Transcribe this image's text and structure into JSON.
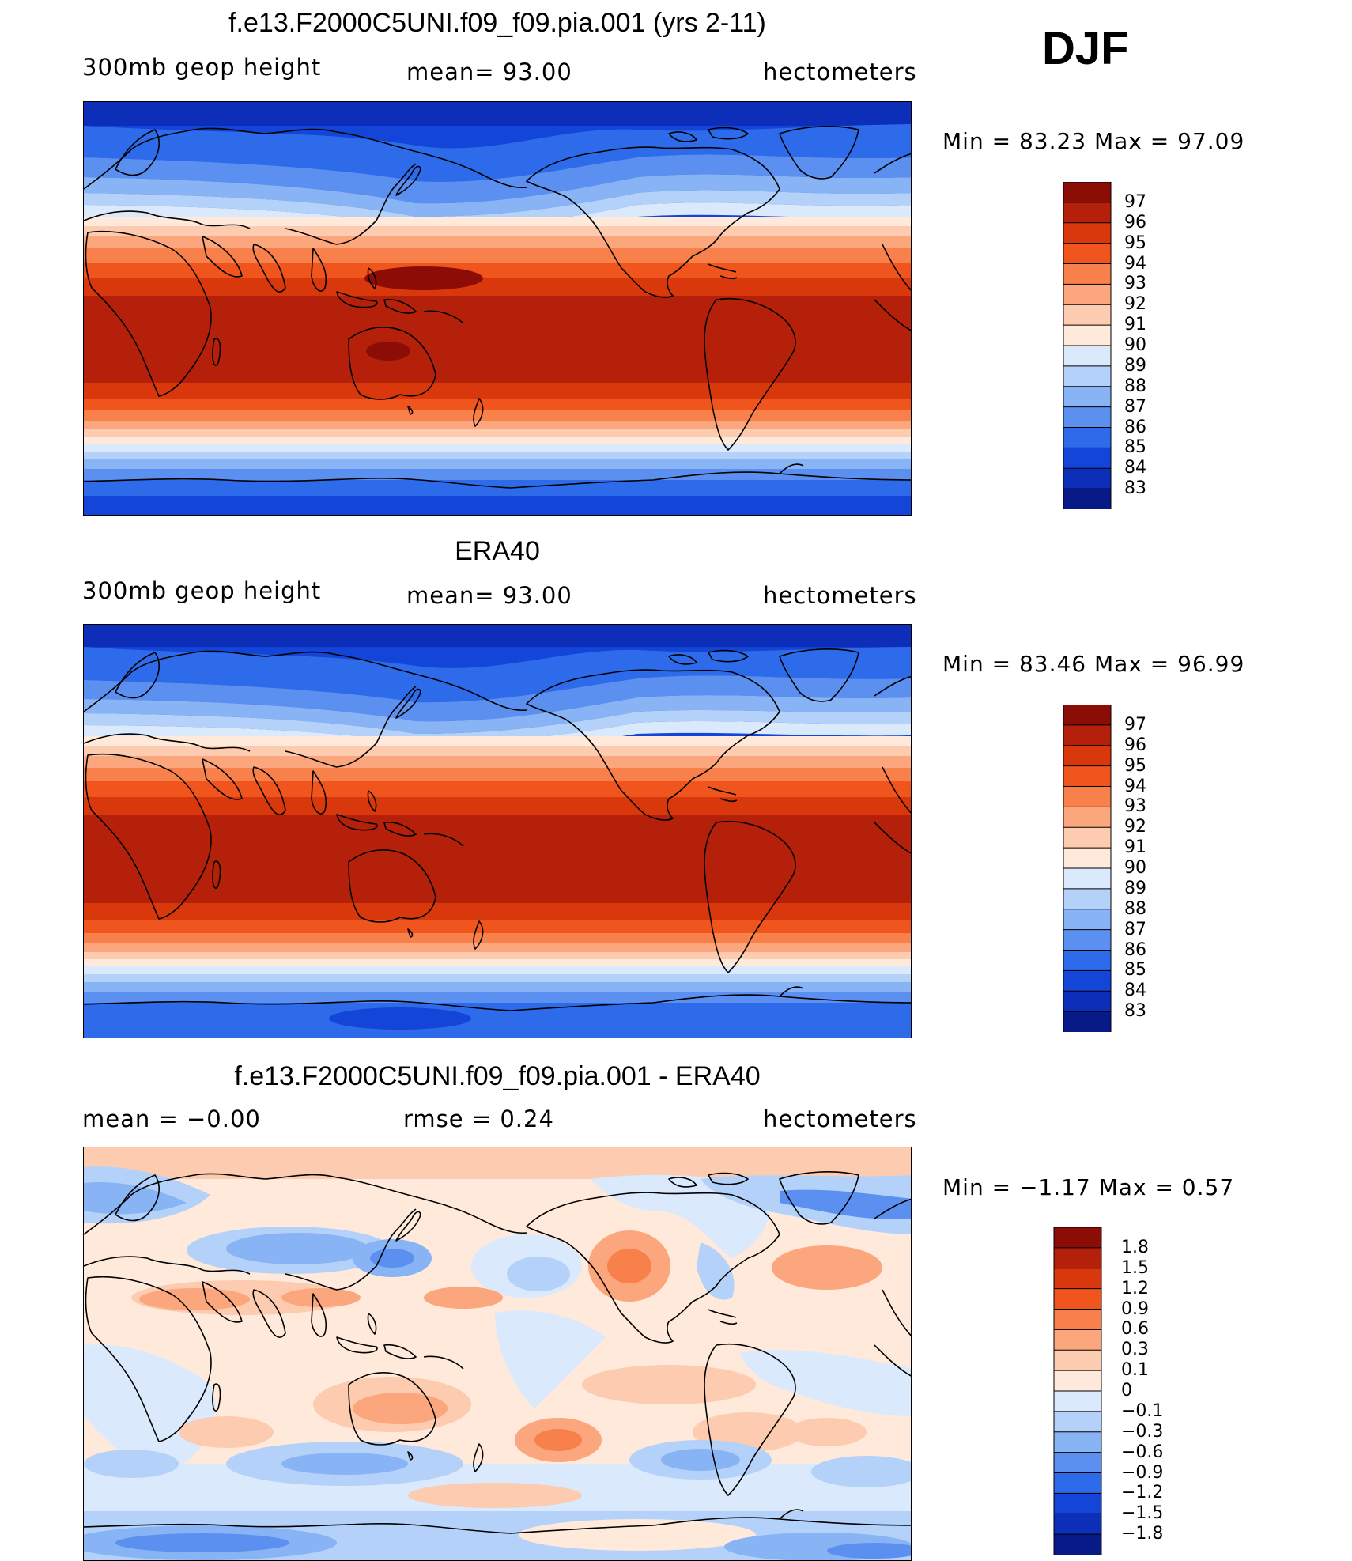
{
  "season": "DJF",
  "panels": [
    {
      "id": "model",
      "title": "f.e13.F2000C5UNI.f09_f09.pia.001 (yrs 2-11)",
      "left_label": "300mb geop height",
      "center_label": "mean=  93.00",
      "right_label": "hectometers",
      "minmax": "Min =  83.23 Max =  97.09",
      "colorbar": {
        "labels": [
          "97",
          "96",
          "95",
          "94",
          "93",
          "92",
          "91",
          "90",
          "89",
          "88",
          "87",
          "86",
          "85",
          "84",
          "83"
        ],
        "colors": [
          "#8b0d06",
          "#b5200a",
          "#d9380c",
          "#f0551e",
          "#f8804a",
          "#fba67d",
          "#fdcbb0",
          "#fee9db",
          "#dae9fb",
          "#b4d2f9",
          "#88b3f4",
          "#5b8ff0",
          "#2e6bea",
          "#1245d8",
          "#0c2eb8",
          "#081a88"
        ]
      },
      "field": {
        "type": "geopotential_height",
        "units": "hectometers",
        "range": [
          83.23,
          97.09
        ],
        "features": [
          "tropical maximum 96-97 over western Pacific and northern Australia",
          "polar minima 83-84"
        ]
      }
    },
    {
      "id": "obs",
      "title": "ERA40",
      "left_label": "300mb geop height",
      "center_label": "mean=  93.00",
      "right_label": "hectometers",
      "minmax": "Min =  83.46 Max =  96.99",
      "colorbar": {
        "labels": [
          "97",
          "96",
          "95",
          "94",
          "93",
          "92",
          "91",
          "90",
          "89",
          "88",
          "87",
          "86",
          "85",
          "84",
          "83"
        ],
        "colors": [
          "#8b0d06",
          "#b5200a",
          "#d9380c",
          "#f0551e",
          "#f8804a",
          "#fba67d",
          "#fdcbb0",
          "#fee9db",
          "#dae9fb",
          "#b4d2f9",
          "#88b3f4",
          "#5b8ff0",
          "#2e6bea",
          "#1245d8",
          "#0c2eb8",
          "#081a88"
        ]
      },
      "field": {
        "type": "geopotential_height",
        "units": "hectometers",
        "range": [
          83.46,
          96.99
        ]
      }
    },
    {
      "id": "diff",
      "title": "f.e13.F2000C5UNI.f09_f09.pia.001 - ERA40",
      "left_label": "mean =   −0.00",
      "center_label": "rmse =    0.24",
      "right_label": "hectometers",
      "minmax": "Min =  −1.17 Max =    0.57",
      "colorbar": {
        "labels": [
          "1.8",
          "1.5",
          "1.2",
          "0.9",
          "0.6",
          "0.3",
          "0.1",
          "0",
          "−0.1",
          "−0.3",
          "−0.6",
          "−0.9",
          "−1.2",
          "−1.5",
          "−1.8"
        ],
        "colors": [
          "#8b0d06",
          "#b5200a",
          "#d9380c",
          "#f0551e",
          "#f8804a",
          "#fba67d",
          "#fdcbb0",
          "#fee9db",
          "#dae9fb",
          "#b4d2f9",
          "#88b3f4",
          "#5b8ff0",
          "#2e6bea",
          "#1245d8",
          "#0c2eb8",
          "#081a88"
        ]
      },
      "field": {
        "type": "difference",
        "units": "hectometers",
        "range": [
          -1.17,
          0.57
        ]
      }
    }
  ]
}
